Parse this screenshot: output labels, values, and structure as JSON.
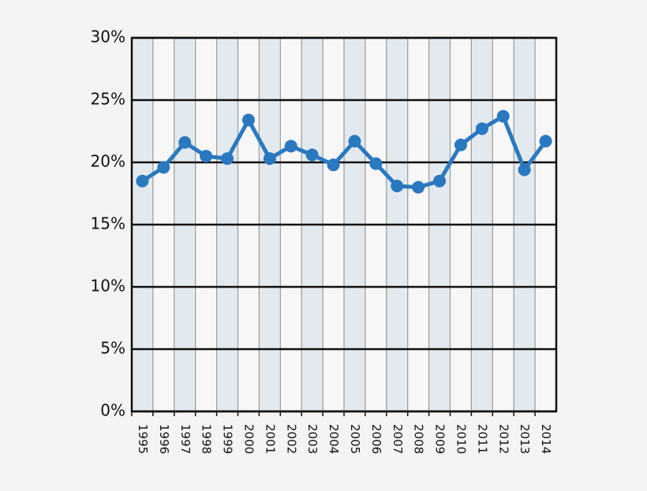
{
  "chart_data": {
    "type": "line",
    "categories": [
      "1995",
      "1996",
      "1997",
      "1998",
      "1999",
      "2000",
      "2001",
      "2002",
      "2003",
      "2004",
      "2005",
      "2006",
      "2007",
      "2008",
      "2009",
      "2010",
      "2011",
      "2012",
      "2013",
      "2014"
    ],
    "series": [
      {
        "color": "#2a78c0",
        "values": [
          18.5,
          19.6,
          21.6,
          20.5,
          20.3,
          23.4,
          20.3,
          21.3,
          20.6,
          19.8,
          21.7,
          19.9,
          18.1,
          18.0,
          18.5,
          21.4,
          22.7,
          23.7,
          19.4,
          21.7
        ]
      }
    ],
    "ylim": [
      0,
      30
    ],
    "yticks": [
      {
        "value": 0,
        "label": "0%"
      },
      {
        "value": 5,
        "label": "5%"
      },
      {
        "value": 10,
        "label": "10%"
      },
      {
        "value": 15,
        "label": "15%"
      },
      {
        "value": 20,
        "label": "20%"
      },
      {
        "value": 25,
        "label": "25%"
      },
      {
        "value": 30,
        "label": "30%"
      }
    ],
    "grid": true
  }
}
